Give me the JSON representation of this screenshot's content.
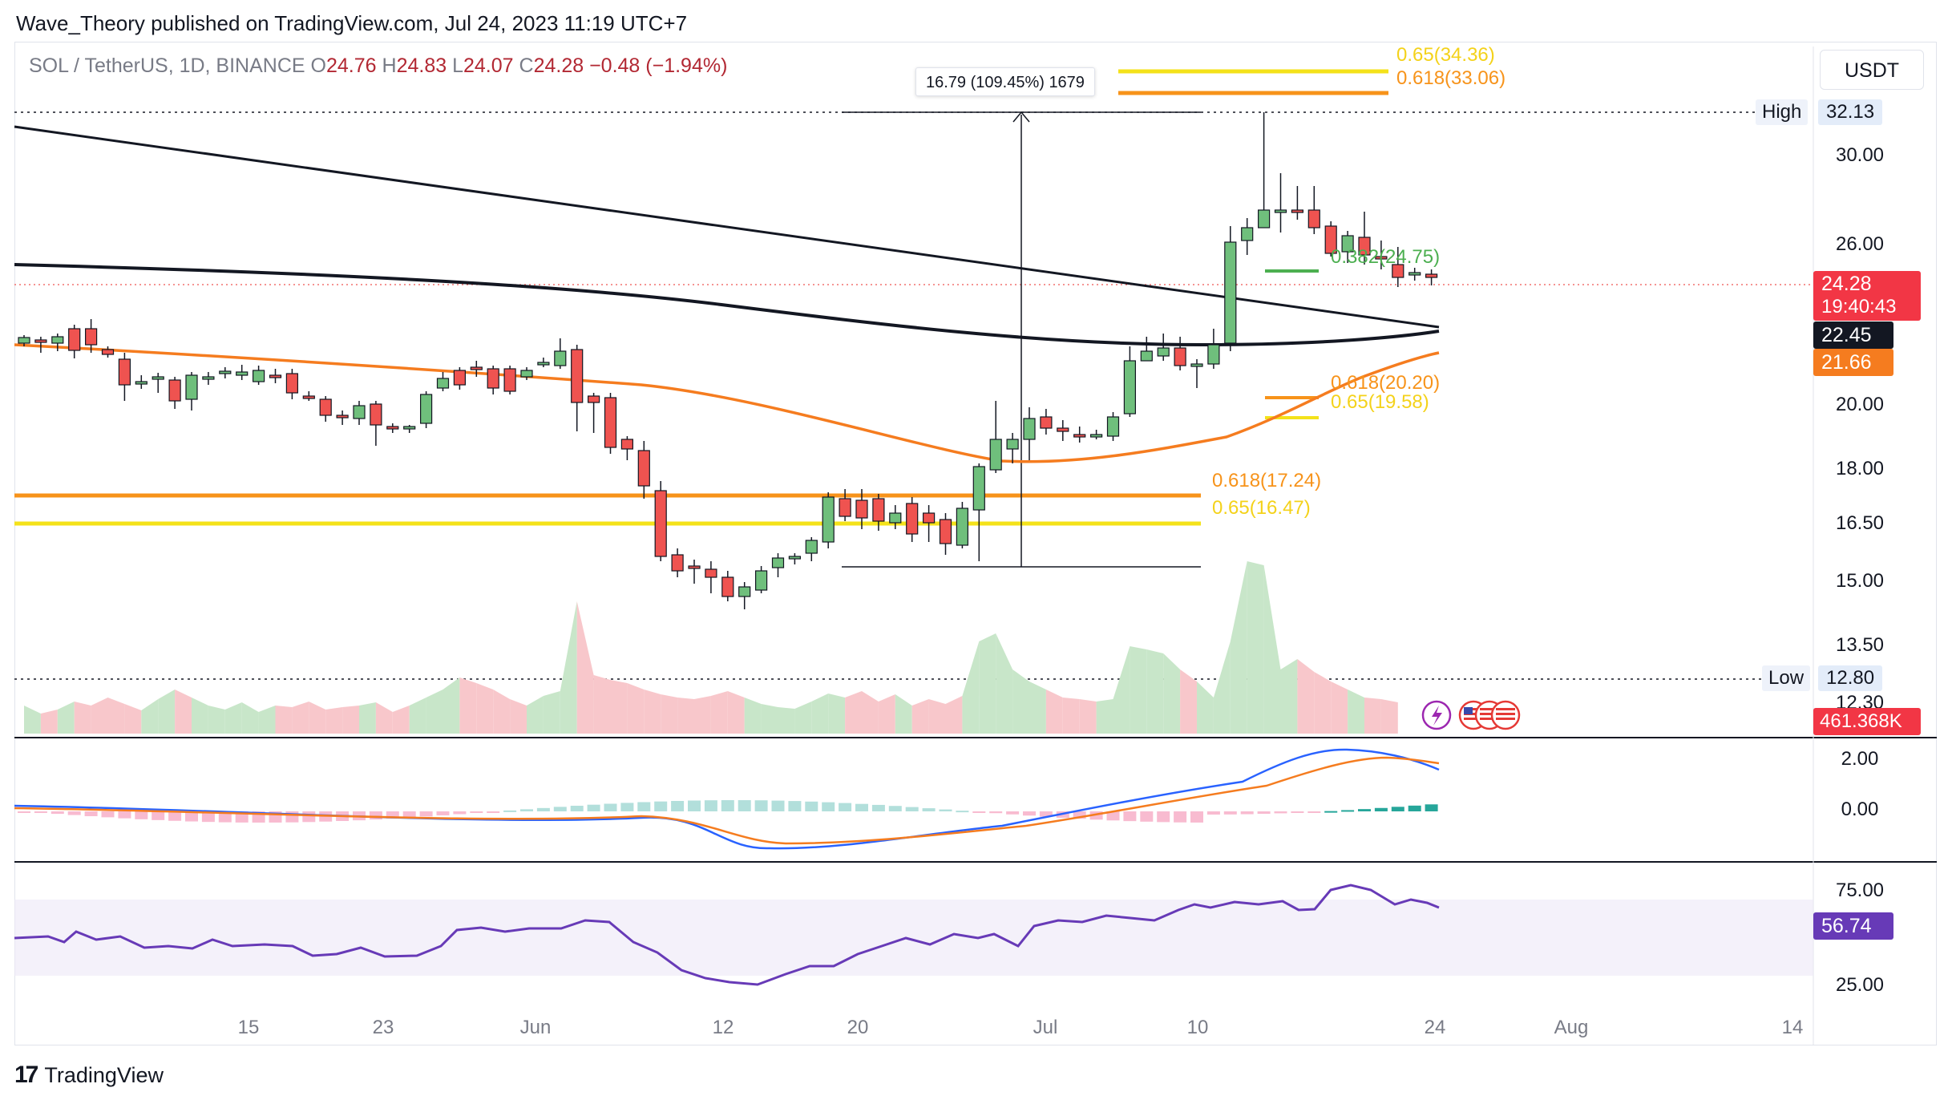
{
  "header": {
    "publisher_line": "Wave_Theory published on TradingView.com, Jul 24, 2023 11:19 UTC+7"
  },
  "symbol": {
    "name": "SOL / TetherUS, 1D, BINANCE",
    "o_label": "O",
    "o_value": "24.76",
    "h_label": "H",
    "h_value": "24.83",
    "l_label": "L",
    "l_value": "24.07",
    "c_label": "C",
    "c_value": "24.28",
    "change": "−0.48 (−1.94%)"
  },
  "currency_button": "USDT",
  "measure_label": "16.79 (109.45%) 1679",
  "fib_labels": {
    "top_065": "0.65(34.36)",
    "top_0618": "0.618(33.06)",
    "mid_0382": "0.382(24.75)",
    "mid_0618": "0.618(20.20)",
    "mid_065": "0.65(19.58)",
    "low_0618": "0.618(17.24)",
    "low_065": "0.65(16.47)"
  },
  "price_scale": {
    "ticks": [
      "30.00",
      "26.00",
      "20.00",
      "18.00",
      "16.50",
      "15.00",
      "13.50",
      "12.30"
    ],
    "high_label": "High",
    "high_value": "32.13",
    "low_label": "Low",
    "low_value": "12.80",
    "last_price": "24.28",
    "countdown": "19:40:43",
    "ma_black": "22.45",
    "ma_orange": "21.66",
    "volume": "461.368K"
  },
  "macd_scale": {
    "ticks": [
      "2.00",
      "0.00"
    ]
  },
  "rsi_scale": {
    "ticks": [
      "75.00",
      "25.00"
    ],
    "value": "56.74"
  },
  "time_axis": [
    "15",
    "23",
    "Jun",
    "12",
    "20",
    "Jul",
    "10",
    "24",
    "Aug",
    "14"
  ],
  "footer": {
    "brand": "TradingView"
  },
  "colors": {
    "up": "#26a69a",
    "up_fill": "#6fbf7c",
    "down": "#ef5350",
    "fib_orange": "#f7931a",
    "fib_yellow": "#f4e21a",
    "fib_green": "#4caf50",
    "ma_orange": "#f57c1f",
    "ma_black": "#131722",
    "macd_line": "#2962ff",
    "signal_line": "#f57c1f",
    "rsi": "#673ab7"
  },
  "icons": [
    "lightning-icon",
    "us-flag-icon",
    "us-flag-icon",
    "us-flag-icon"
  ]
}
